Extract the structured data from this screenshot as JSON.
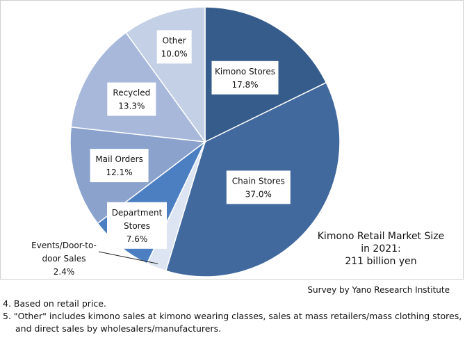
{
  "chart_data": {
    "type": "pie",
    "slices": [
      {
        "label": [
          "Kimono Stores"
        ],
        "value": 17.8,
        "value_label": "17.8%",
        "color": "#355c8a"
      },
      {
        "label": [
          "Chain Stores"
        ],
        "value": 37.0,
        "value_label": "37.0%",
        "color": "#41699d"
      },
      {
        "label": [
          "Events/Door-to-",
          "door Sales"
        ],
        "value": 2.4,
        "value_label": "2.4%",
        "color": "#dce5f1"
      },
      {
        "label": [
          "Department",
          "Stores"
        ],
        "value": 7.6,
        "value_label": "7.6%",
        "color": "#4c7fc1"
      },
      {
        "label": [
          "Mail Orders"
        ],
        "value": 12.1,
        "value_label": "12.1%",
        "color": "#8aa2cc"
      },
      {
        "label": [
          "Recycled"
        ],
        "value": 13.3,
        "value_label": "13.3%",
        "color": "#a7b8da"
      },
      {
        "label": [
          "Other"
        ],
        "value": 10.0,
        "value_label": "10.0%",
        "color": "#c4d0e5"
      }
    ]
  },
  "market_size": {
    "line1": "Kimono Retail Market Size",
    "line2": "in 2021:",
    "line3": "211 billion yen"
  },
  "source": "Survey by Yano Research Institute",
  "notes": [
    "4. Based on retail price.",
    "5. \"Other\" includes kimono sales at kimono wearing classes, sales at mass retailers/mass clothing stores,",
    "and direct sales by wholesalers/manufacturers."
  ]
}
